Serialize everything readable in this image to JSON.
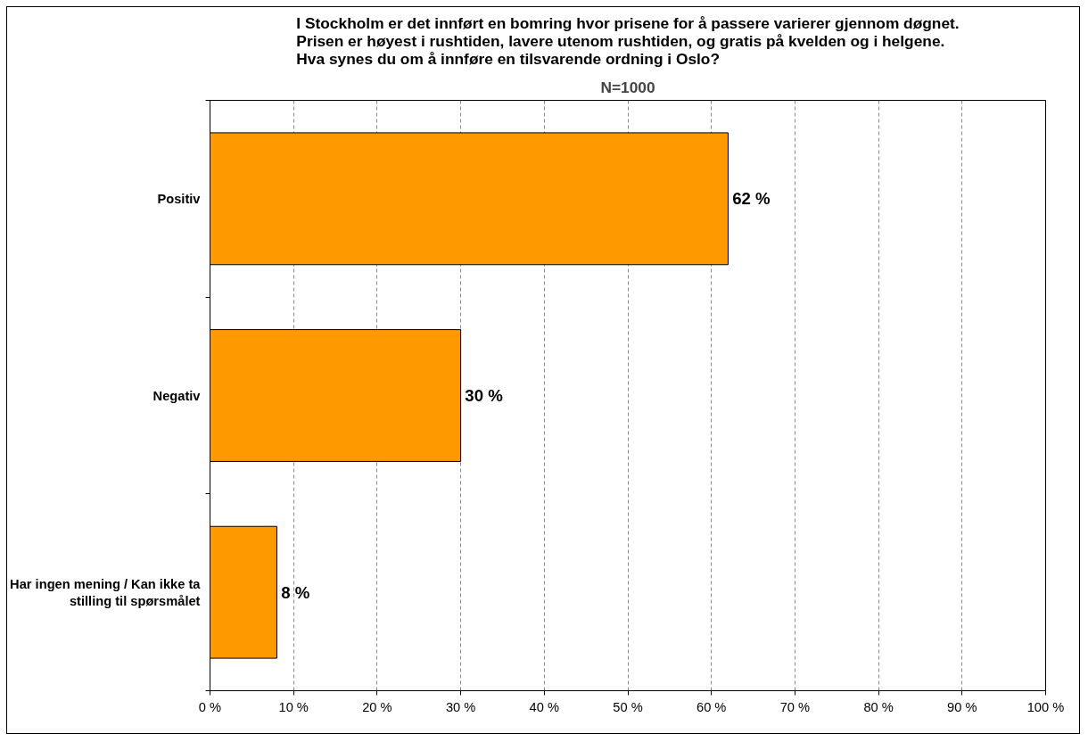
{
  "chart_data": {
    "type": "bar",
    "orientation": "horizontal",
    "title": "I Stockholm er det innført en bomring hvor prisene for å passere varierer gjennom døgnet.\nPrisen er høyest i rushtiden, lavere utenom rushtiden, og gratis på kvelden og i helgene.\nHva synes du om å innføre en tilsvarende ordning i Oslo?",
    "subtitle": "N=1000",
    "categories": [
      "Positiv",
      "Negativ",
      "Har ingen mening / Kan ikke ta stilling til spørsmålet"
    ],
    "values": [
      62,
      30,
      8
    ],
    "value_labels": [
      "62 %",
      "30 %",
      "8 %"
    ],
    "color": "#ff9900",
    "xlim": [
      0,
      100
    ],
    "xticks": [
      {
        "value": 0,
        "label": "0 %"
      },
      {
        "value": 10,
        "label": "10 %"
      },
      {
        "value": 20,
        "label": "20 %"
      },
      {
        "value": 30,
        "label": "30 %"
      },
      {
        "value": 40,
        "label": "40 %"
      },
      {
        "value": 50,
        "label": "50 %"
      },
      {
        "value": 60,
        "label": "60 %"
      },
      {
        "value": 70,
        "label": "70 %"
      },
      {
        "value": 80,
        "label": "80 %"
      },
      {
        "value": 90,
        "label": "90 %"
      },
      {
        "value": 100,
        "label": "100 %"
      }
    ],
    "grid": "x"
  }
}
